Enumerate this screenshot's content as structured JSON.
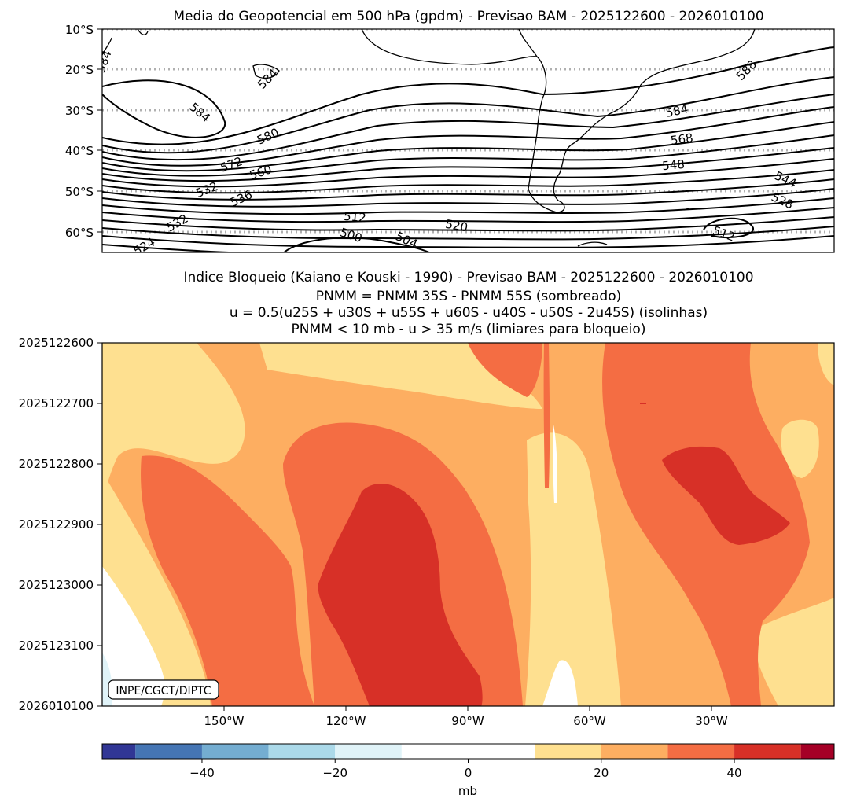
{
  "top_panel": {
    "title": "Media do Geopotencial em 500 hPa (gpdm) - Previsao BAM - 2025122600 - 2026010100"
  },
  "bottom_panel": {
    "title_lines": [
      "Indice Bloqueio (Kaiano e Kouski - 1990) - Previsao BAM - 2025122600 - 2026010100",
      "PNMM = PNMM 35S - PNMM 55S (sombreado)",
      "u = 0.5(u25S + u30S + u55S + u60S - u40S - u50S - 2u45S) (isolinhas)",
      "PNMM < 10 mb - u > 35 m/s (limiares para bloqueio)"
    ],
    "watermark": "INPE/CGCT/DIPTC"
  },
  "colorbar": {
    "label": "mb",
    "boundaries": [
      -55,
      -50,
      -40,
      -30,
      -20,
      -10,
      10,
      20,
      30,
      40,
      50,
      55
    ],
    "colors": [
      "#313695",
      "#4575b4",
      "#74add1",
      "#abd9e9",
      "#e0f3f8",
      "#ffffff",
      "#fee090",
      "#fdae61",
      "#f46d43",
      "#d73027",
      "#a50026"
    ],
    "tick_values": [
      -40,
      -20,
      0,
      20,
      40
    ],
    "tick_labels": [
      "−40",
      "−20",
      "0",
      "20",
      "40"
    ]
  },
  "chart_data": [
    {
      "type": "contour",
      "title": "Media do Geopotencial em 500 hPa (gpdm) - Previsao BAM - 2025122600 - 2026010100",
      "units": "gpdm",
      "xlim": [
        -180,
        0
      ],
      "ylim": [
        -65,
        -10
      ],
      "y_ticks": [
        -10,
        -20,
        -30,
        -40,
        -50,
        -60
      ],
      "y_tick_labels": [
        "10°S",
        "20°S",
        "30°S",
        "40°S",
        "50°S",
        "60°S"
      ],
      "grid": "dotted latitude lines",
      "contour_levels": [
        500,
        504,
        508,
        512,
        516,
        520,
        524,
        528,
        532,
        536,
        540,
        544,
        548,
        552,
        556,
        560,
        564,
        568,
        572,
        576,
        580,
        584,
        588
      ],
      "contour_labels": [
        "584",
        "584",
        "584",
        "588",
        "580",
        "584",
        "568",
        "572",
        "560",
        "548",
        "532",
        "544",
        "536",
        "528",
        "512",
        "520",
        "512",
        "532",
        "500",
        "504",
        "524"
      ]
    },
    {
      "type": "heatmap",
      "subtype": "filled contour (Hovmoller)",
      "title": "Indice Bloqueio (Kaiano e Kouski - 1990) - Previsao BAM - 2025122600 - 2026010100",
      "xlim": [
        -180,
        0
      ],
      "x_ticks": [
        -150,
        -120,
        -90,
        -60,
        -30
      ],
      "x_tick_labels": [
        "150°W",
        "120°W",
        "90°W",
        "60°W",
        "30°W"
      ],
      "y_tick_labels": [
        "2025122600",
        "2025122700",
        "2025122800",
        "2025122900",
        "2025123000",
        "2025123100",
        "2026010100"
      ],
      "value_label": "mb",
      "features": [
        {
          "region": "20-30 mb band",
          "value": 25
        },
        {
          "region": "30-40 mb band",
          "value": 35
        },
        {
          "region": "max core near 110W, 2025122900-2026010100",
          "value": 45
        },
        {
          "region": "max core near 40W, 2025122800-2025122900",
          "value": 45
        },
        {
          "region": "min area near 180W, 2025123100-2026010100",
          "value": -15
        }
      ]
    }
  ]
}
